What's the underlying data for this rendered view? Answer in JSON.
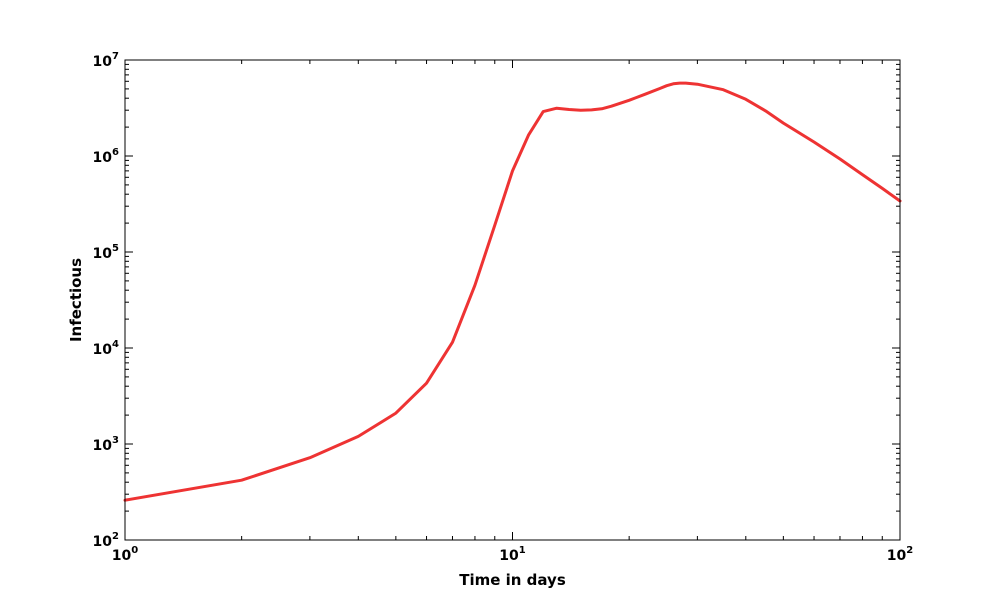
{
  "chart_data": {
    "type": "line",
    "xlabel": "Time in days",
    "ylabel": "Infectious",
    "xscale": "log",
    "yscale": "log",
    "xlim": [
      1,
      100
    ],
    "ylim": [
      100,
      10000000
    ],
    "grid": false,
    "legend": "none",
    "x_ticks": [
      {
        "value": 1,
        "base": "10",
        "exp": "0"
      },
      {
        "value": 10,
        "base": "10",
        "exp": "1"
      },
      {
        "value": 100,
        "base": "10",
        "exp": "2"
      }
    ],
    "y_ticks": [
      {
        "value": 100,
        "base": "10",
        "exp": "2"
      },
      {
        "value": 1000,
        "base": "10",
        "exp": "3"
      },
      {
        "value": 10000,
        "base": "10",
        "exp": "4"
      },
      {
        "value": 100000,
        "base": "10",
        "exp": "5"
      },
      {
        "value": 1000000,
        "base": "10",
        "exp": "6"
      },
      {
        "value": 10000000,
        "base": "10",
        "exp": "7"
      }
    ],
    "series": [
      {
        "color": "#ee3333",
        "x": [
          1,
          2,
          3,
          4,
          5,
          6,
          7,
          8,
          9,
          10,
          11,
          12,
          13,
          14,
          15,
          16,
          17,
          18,
          20,
          22,
          24,
          25,
          26,
          27,
          28,
          30,
          35,
          40,
          45,
          50,
          60,
          70,
          80,
          90,
          100
        ],
        "y": [
          260,
          420,
          720,
          1200,
          2100,
          4300,
          11500,
          45000,
          190000,
          700000,
          1650000,
          2900000,
          3150000,
          3050000,
          3000000,
          3020000,
          3100000,
          3300000,
          3800000,
          4400000,
          5050000,
          5400000,
          5650000,
          5750000,
          5750000,
          5600000,
          4900000,
          3900000,
          2950000,
          2200000,
          1400000,
          930000,
          640000,
          460000,
          340000
        ]
      }
    ]
  }
}
